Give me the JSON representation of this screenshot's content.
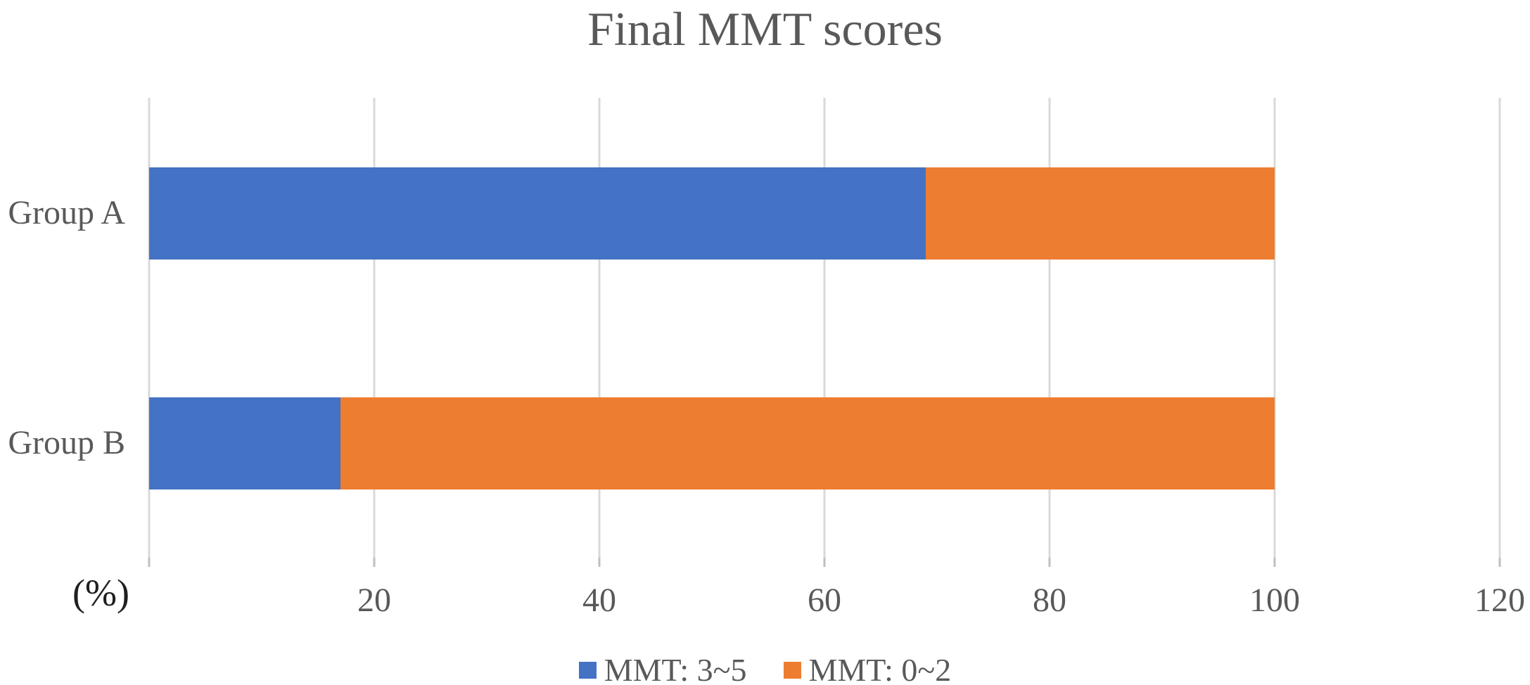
{
  "title": "Final MMT scores",
  "chart_data": {
    "type": "bar",
    "orientation": "horizontal",
    "stacked": true,
    "title": "Final MMT scores",
    "categories": [
      "Group A",
      "Group B"
    ],
    "series": [
      {
        "name": "MMT: 3~5",
        "color": "#4472C4",
        "values": [
          69,
          17
        ]
      },
      {
        "name": "MMT: 0~2",
        "color": "#ED7D31",
        "values": [
          31,
          83
        ]
      }
    ],
    "xlabel": "(%)",
    "ylabel": "",
    "xlim": [
      0,
      120
    ],
    "xticks": [
      0,
      20,
      40,
      60,
      80,
      100,
      120
    ],
    "xtick_labels": [
      "",
      "20",
      "40",
      "60",
      "80",
      "100",
      "120"
    ],
    "grid": true,
    "legend_position": "bottom",
    "units": "percent"
  },
  "styles": {
    "text_color": "#595959",
    "axis_unit_color": "#1f1f1f",
    "gridline_color": "#D9D9D9",
    "tick_color": "#BFBFBF",
    "background": "#FFFFFF",
    "series_blue": "#4472C4",
    "series_orange": "#ED7D31"
  }
}
